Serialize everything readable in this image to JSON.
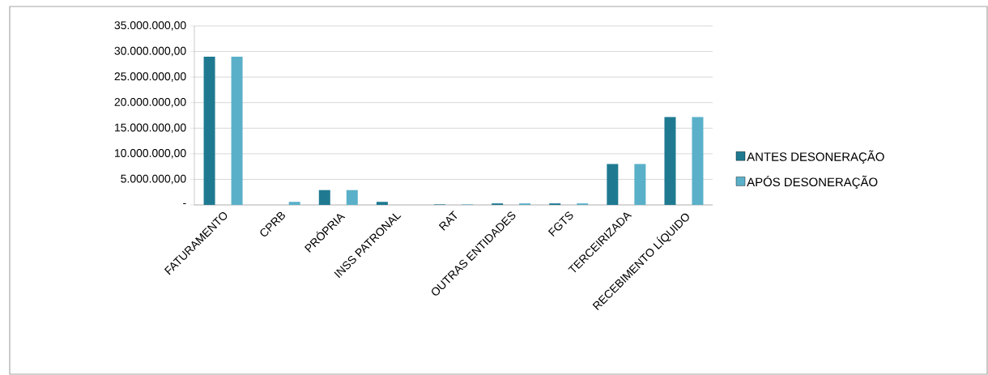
{
  "chart_data": {
    "type": "bar",
    "categories": [
      "FATURAMENTO",
      "CPRB",
      "PRÓPRIA",
      "INSS PATRONAL",
      "RAT",
      "OUTRAS ENTIDADES",
      "FGTS",
      "TERCEIRIZADA",
      "RECEBIMENTO LÍQUIDO"
    ],
    "series": [
      {
        "name": "ANTES DESONERAÇÃO",
        "color": "#1f7a91",
        "values": [
          29000000,
          null,
          2900000,
          600000,
          100000,
          300000,
          300000,
          8000000,
          17200000
        ]
      },
      {
        "name": "APÓS DESONERAÇÃO",
        "color": "#5ab0c8",
        "values": [
          29000000,
          600000,
          2900000,
          null,
          100000,
          300000,
          300000,
          8000000,
          17200000
        ]
      }
    ],
    "ylim": [
      0,
      35000000
    ],
    "yticks": [
      {
        "value": 0,
        "label": "-"
      },
      {
        "value": 5000000,
        "label": "5.000.000,00"
      },
      {
        "value": 10000000,
        "label": "10.000.000,00"
      },
      {
        "value": 15000000,
        "label": "15.000.000,00"
      },
      {
        "value": 20000000,
        "label": "20.000.000,00"
      },
      {
        "value": 25000000,
        "label": "25.000.000,00"
      },
      {
        "value": 30000000,
        "label": "30.000.000,00"
      },
      {
        "value": 35000000,
        "label": "35.000.000,00"
      }
    ],
    "grid": "y",
    "legend": "right"
  }
}
